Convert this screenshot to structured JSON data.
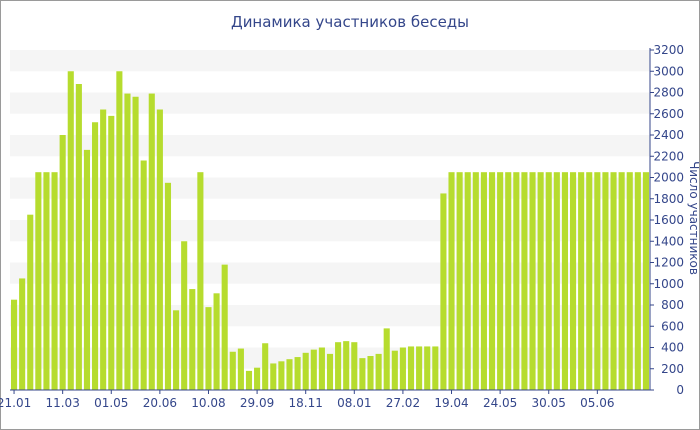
{
  "chart_data": {
    "type": "bar",
    "title": "Динамика участников беседы",
    "ylabel": "Число участников",
    "xlabel": "",
    "ylim": [
      0,
      3200
    ],
    "yticks": [
      0,
      200,
      400,
      600,
      800,
      1000,
      1200,
      1400,
      1600,
      1800,
      2000,
      2200,
      2400,
      2600,
      2800,
      3000,
      3200
    ],
    "y_axis_position": "right",
    "x_tick_labels": [
      {
        "index": 0,
        "label": "21.01"
      },
      {
        "index": 6,
        "label": "11.03"
      },
      {
        "index": 12,
        "label": "01.05"
      },
      {
        "index": 18,
        "label": "20.06"
      },
      {
        "index": 24,
        "label": "10.08"
      },
      {
        "index": 30,
        "label": "29.09"
      },
      {
        "index": 36,
        "label": "18.11"
      },
      {
        "index": 42,
        "label": "08.01"
      },
      {
        "index": 48,
        "label": "27.02"
      },
      {
        "index": 54,
        "label": "19.04"
      },
      {
        "index": 60,
        "label": "24.05"
      },
      {
        "index": 66,
        "label": "30.05"
      },
      {
        "index": 72,
        "label": "05.06"
      }
    ],
    "bar_color": "#b6dc2e",
    "grid_band_color": "#f5f5f5",
    "values": [
      850,
      1050,
      1650,
      2050,
      2050,
      2050,
      2400,
      3000,
      2880,
      2260,
      2520,
      2640,
      2580,
      3000,
      2790,
      2760,
      2160,
      2790,
      2640,
      1950,
      750,
      1400,
      950,
      2050,
      780,
      910,
      1180,
      360,
      390,
      180,
      210,
      440,
      250,
      270,
      290,
      310,
      350,
      380,
      400,
      340,
      450,
      460,
      450,
      300,
      320,
      340,
      580,
      370,
      400,
      410,
      410,
      410,
      410,
      1850,
      2050,
      2050,
      2050,
      2050,
      2050,
      2050,
      2050,
      2050,
      2050,
      2050,
      2050,
      2050,
      2050,
      2050,
      2050,
      2050,
      2050,
      2050,
      2050,
      2050,
      2050,
      2050,
      2050,
      2050,
      2050
    ]
  }
}
